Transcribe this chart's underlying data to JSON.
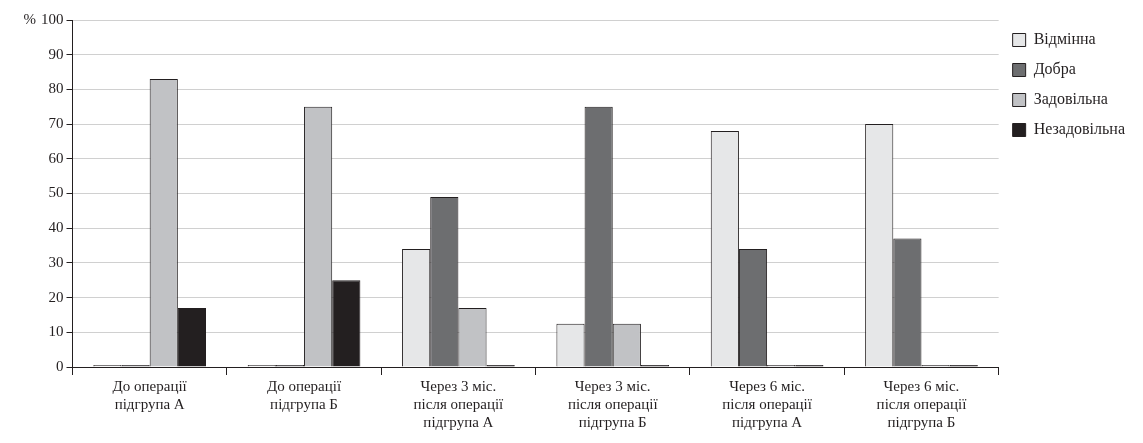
{
  "chart_data": {
    "type": "bar",
    "ylabel": "%",
    "categories": [
      "До операції\nпідгрупа А",
      "До операції\nпідгрупа Б",
      "Через 3 міс.\nпісля операції\nпідгрупа А",
      "Через 3 міс.\nпісля операції\nпідгрупа Б",
      "Через 6 міс.\nпісля операції\nпідгрупа А",
      "Через 6 міс.\nпісля операції\nпідгрупа Б"
    ],
    "series": [
      {
        "name": "Відмінна",
        "color": "#e6e7e8",
        "values": [
          0,
          0,
          34,
          12.5,
          68,
          70
        ]
      },
      {
        "name": "Добра",
        "color": "#6d6e70",
        "values": [
          0,
          0,
          49,
          75,
          34,
          37
        ]
      },
      {
        "name": "Задовільна",
        "color": "#c1c2c5",
        "values": [
          83,
          75,
          17,
          12.5,
          0,
          0
        ]
      },
      {
        "name": "Незадовільна",
        "color": "#231f20",
        "values": [
          17,
          25,
          0,
          0,
          0,
          0
        ]
      }
    ],
    "ylim": [
      0,
      100
    ],
    "yticks": [
      0,
      10,
      20,
      30,
      40,
      50,
      60,
      70,
      80,
      90,
      100
    ],
    "grid": "y",
    "legend": "top right"
  }
}
